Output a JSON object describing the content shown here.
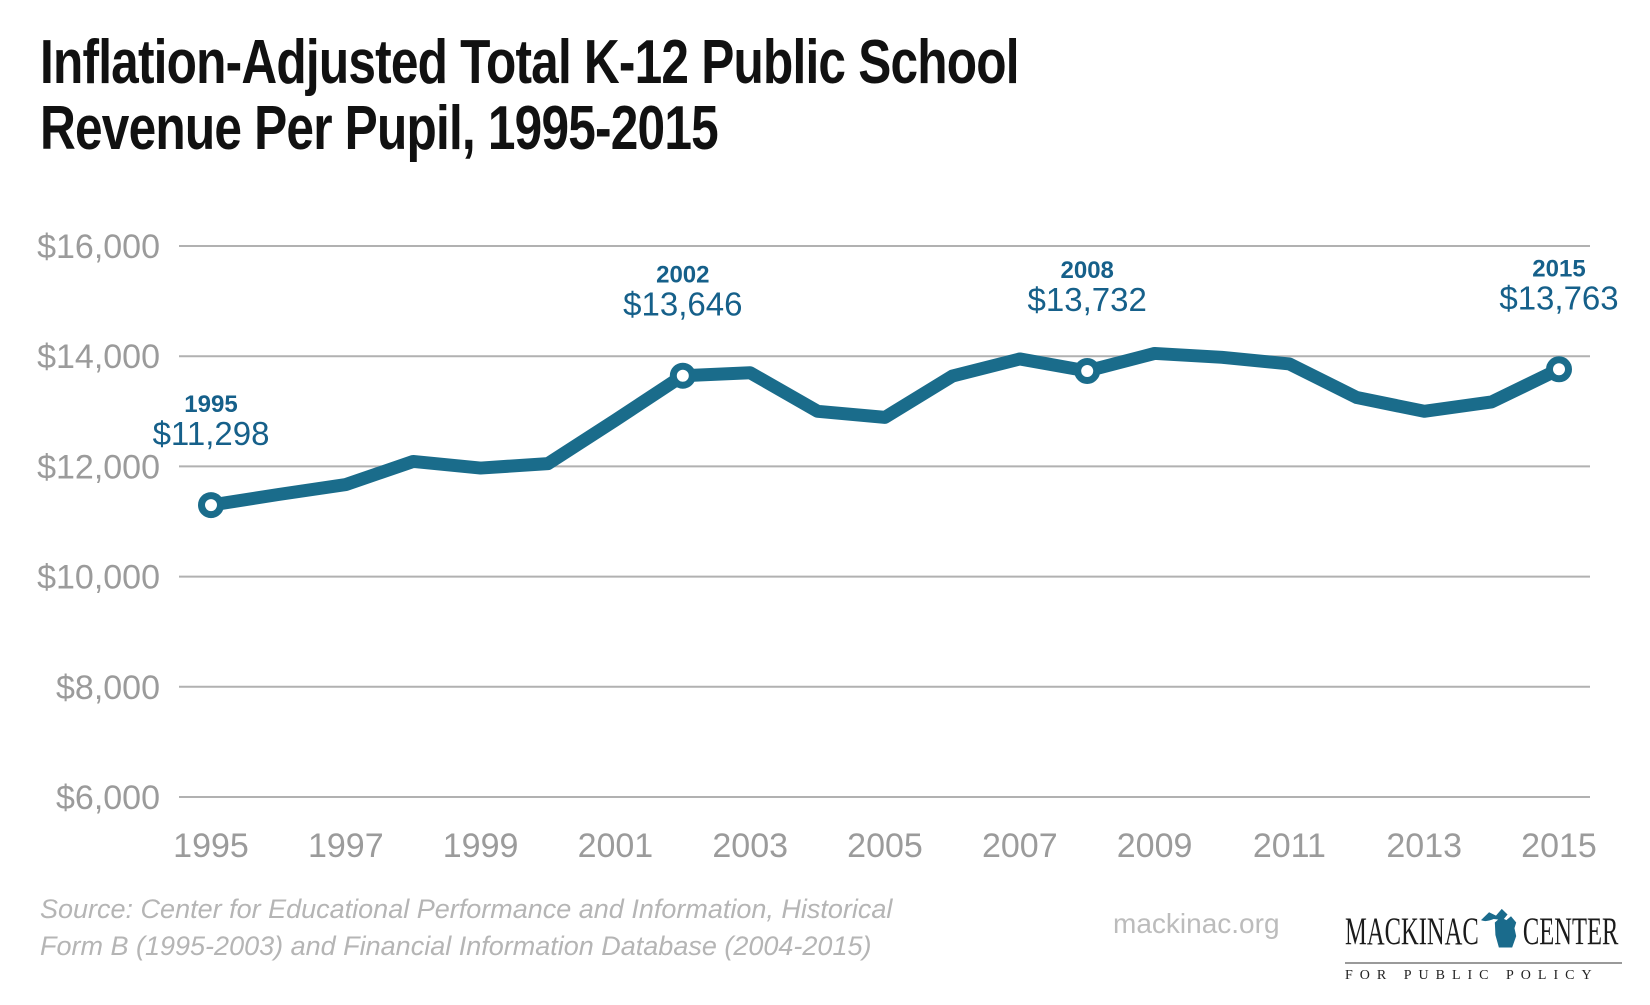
{
  "header": {
    "title_line1": "Inflation-Adjusted Total K-12 Public School",
    "title_line2": "Revenue Per Pupil, 1995-2015"
  },
  "chart_data": {
    "type": "line",
    "title": "Inflation-Adjusted Total K-12 Public School Revenue Per Pupil, 1995-2015",
    "xlabel": "",
    "ylabel": "",
    "ylim": [
      6000,
      16000
    ],
    "grid": true,
    "legend": "none",
    "x": [
      1995,
      1996,
      1997,
      1998,
      1999,
      2000,
      2001,
      2002,
      2003,
      2004,
      2005,
      2006,
      2007,
      2008,
      2009,
      2010,
      2011,
      2012,
      2013,
      2014,
      2015
    ],
    "values": [
      11298,
      11490,
      11670,
      12090,
      11970,
      12050,
      12840,
      13646,
      13700,
      13000,
      12890,
      13640,
      13950,
      13732,
      14050,
      13980,
      13860,
      13250,
      13000,
      13170,
      13763
    ],
    "x_ticks": [
      "1995",
      "1997",
      "1999",
      "2001",
      "2003",
      "2005",
      "2007",
      "2009",
      "2011",
      "2013",
      "2015"
    ],
    "y_ticks": [
      {
        "value": 16000,
        "label": "$16,000"
      },
      {
        "value": 14000,
        "label": "$14,000"
      },
      {
        "value": 12000,
        "label": "$12,000"
      },
      {
        "value": 10000,
        "label": "$10,000"
      },
      {
        "value": 8000,
        "label": "$8,000"
      },
      {
        "value": 6000,
        "label": "$6,000"
      }
    ],
    "annotations": [
      {
        "x": 1995,
        "label": "1995",
        "value": 11298,
        "value_label": "$11,298"
      },
      {
        "x": 2002,
        "label": "2002",
        "value": 13646,
        "value_label": "$13,646"
      },
      {
        "x": 2008,
        "label": "2008",
        "value": 13732,
        "value_label": "$13,732"
      },
      {
        "x": 2015,
        "label": "2015",
        "value": 13763,
        "value_label": "$13,763"
      }
    ],
    "line_color": "#1a6c8b",
    "marker_fill": "#ffffff",
    "annotation_color": "#16608a",
    "grid_color": "#b1b1b1",
    "tick_color": "#9b9b9b"
  },
  "footer": {
    "source_line1": "Source: Center for Educational Performance and Information, Historical",
    "source_line2": "Form B (1995-2003) and Financial Information Database (2004-2015)",
    "site": "mackinac.org",
    "logo": {
      "word1": "MACKINAC",
      "word2": "CENTER",
      "tagline": "FOR PUBLIC POLICY",
      "michigan_color": "#1a6b8c"
    }
  }
}
